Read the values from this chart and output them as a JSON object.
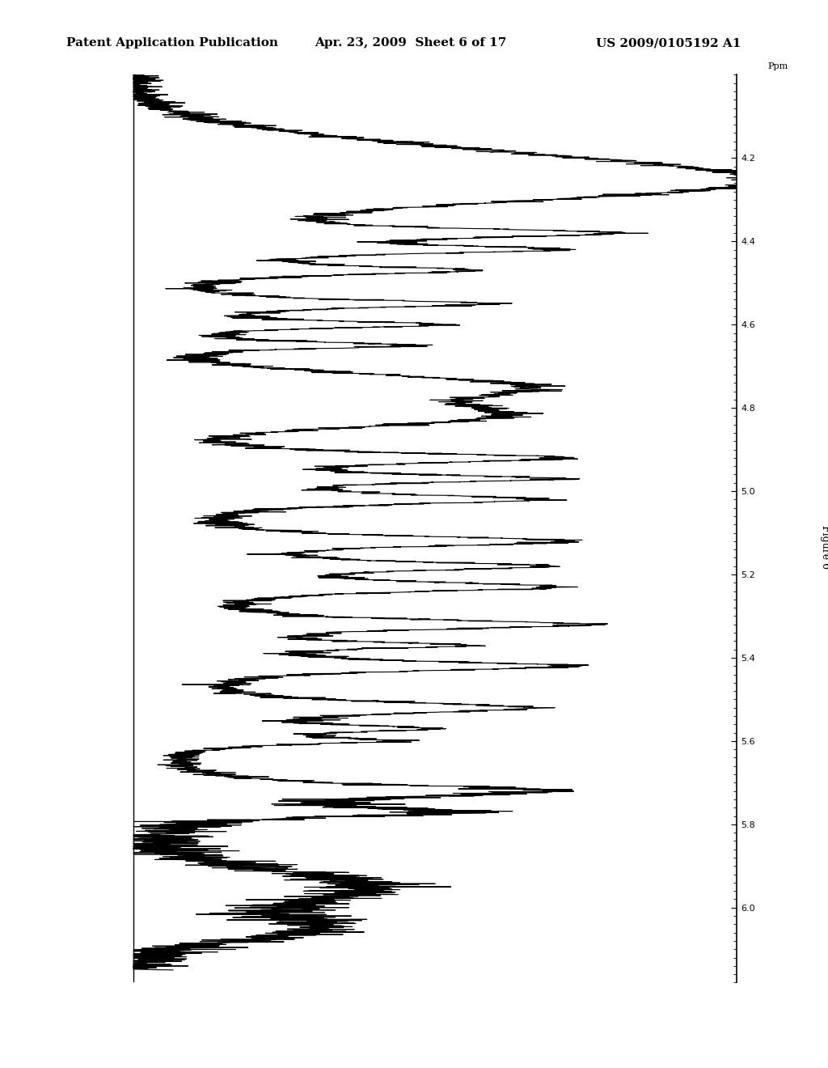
{
  "title_left": "Patent Application Publication",
  "title_center": "Apr. 23, 2009  Sheet 6 of 17",
  "title_right": "US 2009/0105192 A1",
  "figure_label": "Figure 6",
  "axis_label": "Ppm",
  "y_ticks": [
    4.2,
    4.4,
    4.6,
    4.8,
    5.0,
    5.2,
    5.4,
    5.6,
    5.8,
    6.0
  ],
  "y_min": 4.0,
  "y_max": 6.15,
  "background_color": "#ffffff",
  "line_color": "#000000",
  "header_font_size": 11,
  "figure_label_font_size": 9,
  "axis_label_font_size": 8
}
